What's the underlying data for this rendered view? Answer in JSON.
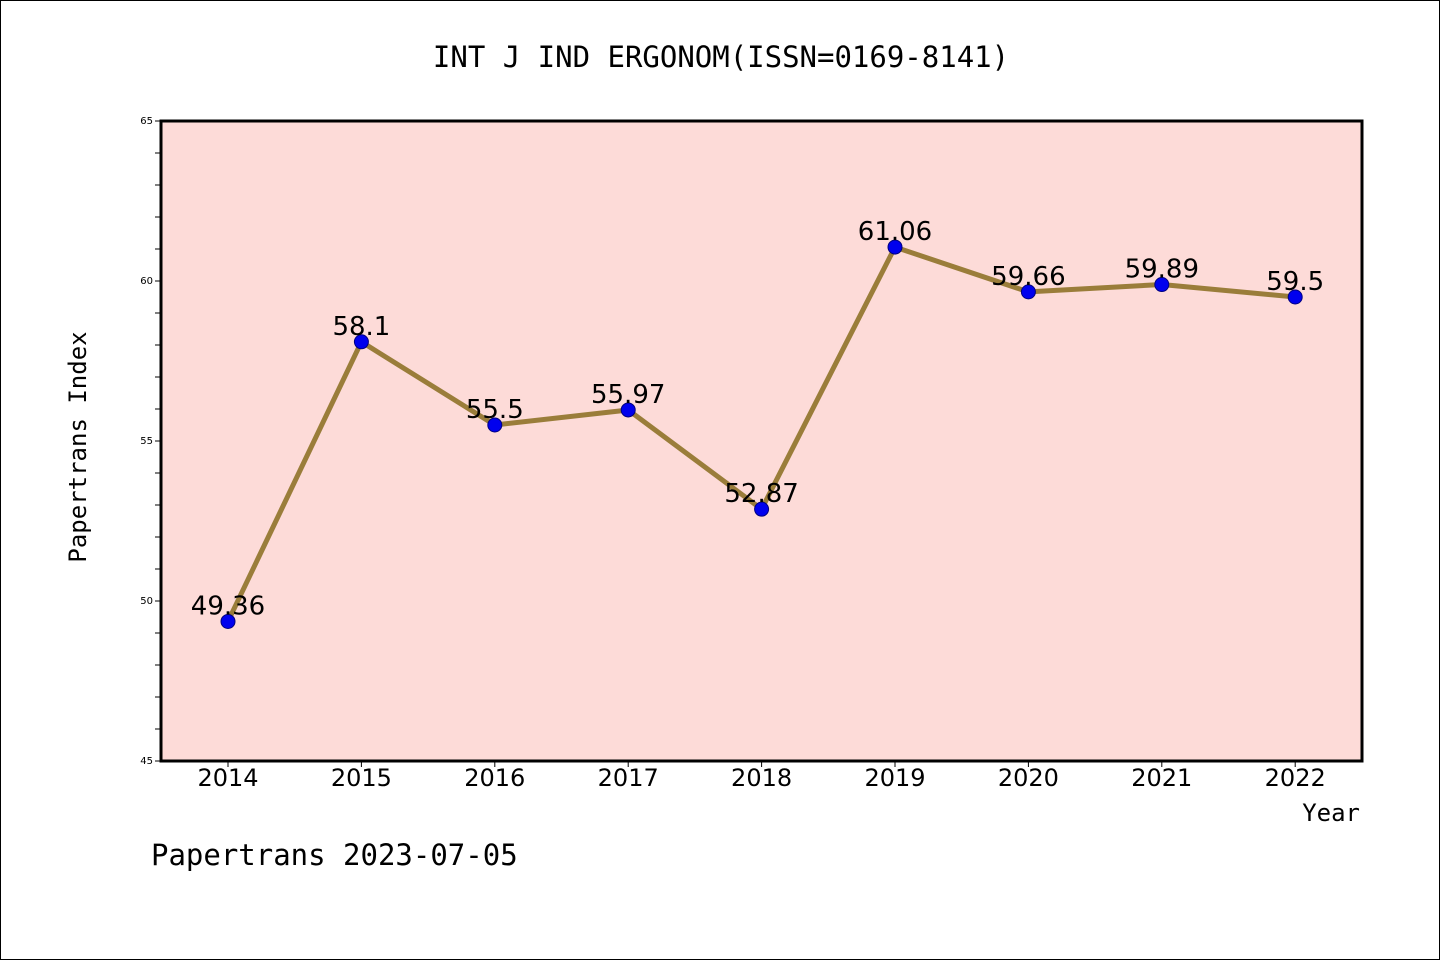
{
  "chart_data": {
    "type": "line",
    "title": "INT J IND ERGONOM(ISSN=0169-8141)",
    "xlabel": "Year",
    "ylabel": "Papertrans Index",
    "categories": [
      "2014",
      "2015",
      "2016",
      "2017",
      "2018",
      "2019",
      "2020",
      "2021",
      "2022"
    ],
    "series": [
      {
        "values": [
          49.36,
          58.1,
          55.5,
          55.97,
          52.87,
          61.06,
          59.66,
          59.89,
          59.5
        ],
        "data_labels": [
          "49.36",
          "58.1",
          "55.5",
          "55.97",
          "52.87",
          "61.06",
          "59.66",
          "59.89",
          "59.5"
        ]
      }
    ],
    "ylim": [
      45,
      65
    ],
    "yticks": [
      "45",
      "50",
      "55",
      "60",
      "65"
    ],
    "y_minor_step": 1,
    "grid": false,
    "footer": "Papertrans 2023-07-05",
    "colors": {
      "plot_background": "#fddbd8",
      "line": "#9a7d3a",
      "marker": "#0000ee",
      "marker_edge": "#000080",
      "axis": "#000000",
      "text": "#000000"
    }
  }
}
